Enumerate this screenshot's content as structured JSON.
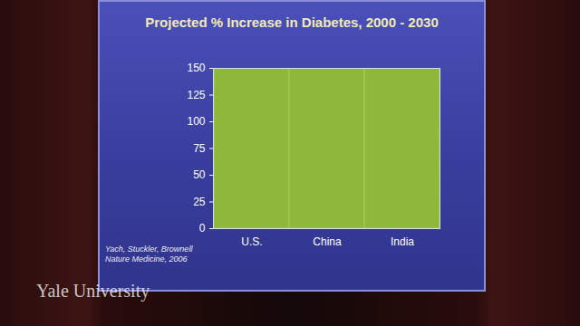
{
  "chart_data": {
    "type": "bar",
    "title": "Projected % Increase in Diabetes, 2000 - 2030",
    "categories": [
      "U.S.",
      "China",
      "India"
    ],
    "values": [
      150,
      150,
      150
    ],
    "color": "#8db83a",
    "ylim": [
      0,
      150
    ],
    "yticks": [
      0,
      25,
      50,
      75,
      100,
      125,
      150
    ],
    "grid": false,
    "source": [
      "Yach, Stuckler, Brownell",
      "Nature Medicine, 2006"
    ],
    "watermark": "Yale University"
  }
}
